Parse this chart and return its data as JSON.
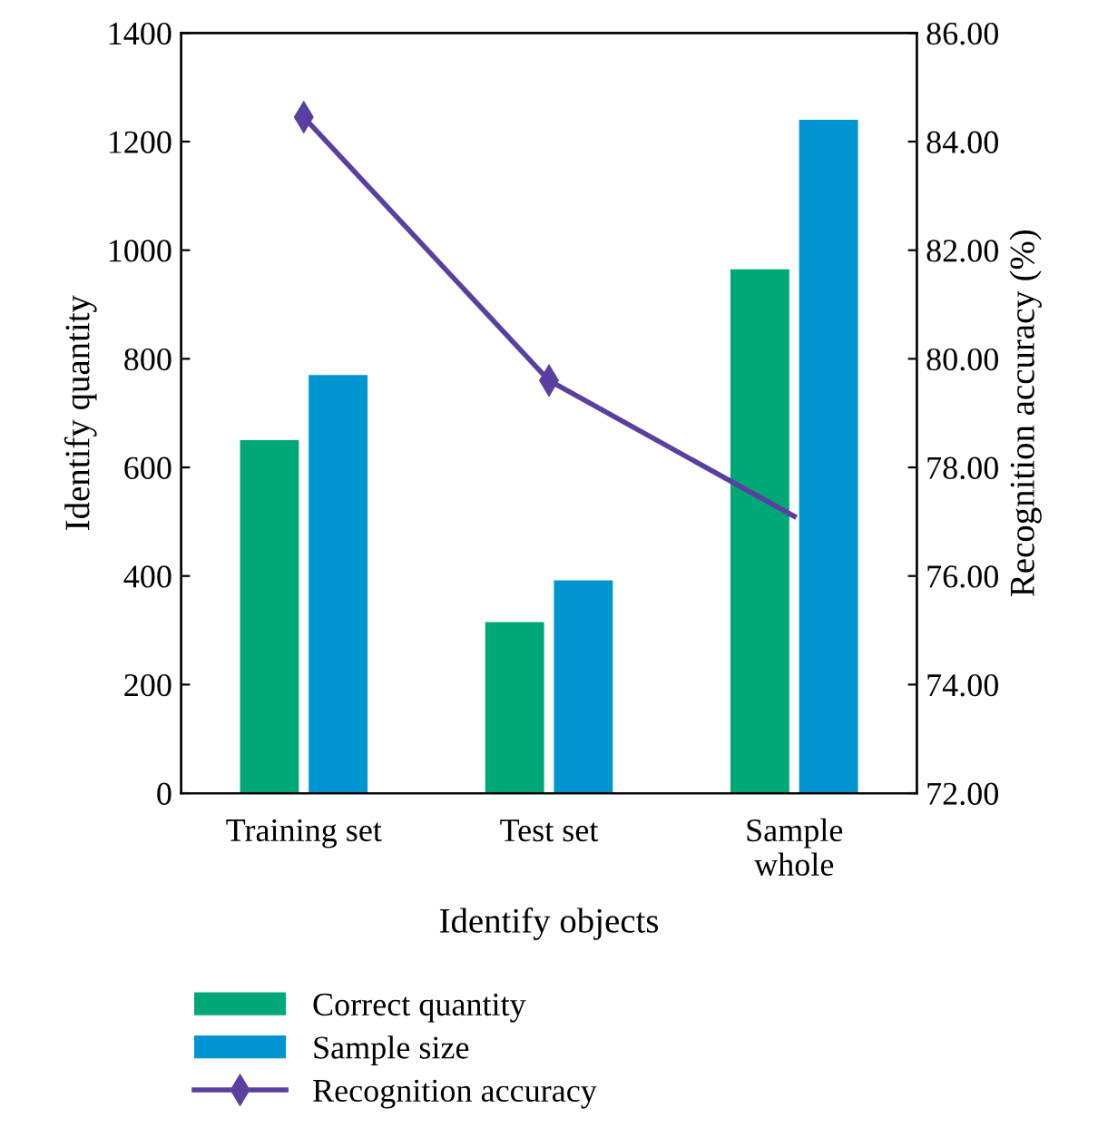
{
  "chart_data": {
    "type": "bar",
    "xlabel": "Identify objects",
    "ylabel": "Identify quantity",
    "y2label": "Recognition accuracy (%)",
    "categories": [
      "Training set",
      "Test set",
      "Sample\nwhole"
    ],
    "series": [
      {
        "name": "Correct quantity",
        "color": "#00a878",
        "values": [
          650,
          315,
          965
        ]
      },
      {
        "name": "Sample size",
        "color": "#0095d0",
        "values": [
          770,
          392,
          1240
        ]
      },
      {
        "name": "Recognition accuracy",
        "color": "#5b3fa0",
        "type": "line",
        "axis": "y2",
        "marker": "diamond",
        "values": [
          84.45,
          79.6,
          77.1
        ]
      }
    ],
    "ylim": [
      0,
      1400
    ],
    "yticks": [
      0,
      200,
      400,
      600,
      800,
      1000,
      1200,
      1400
    ],
    "y2lim": [
      72,
      86
    ],
    "y2ticks": [
      {
        "value": 72,
        "label": "72.00"
      },
      {
        "value": 74,
        "label": "74.00"
      },
      {
        "value": 76,
        "label": "76.00"
      },
      {
        "value": 78,
        "label": "78.00"
      },
      {
        "value": 80,
        "label": "80.00"
      },
      {
        "value": 82,
        "label": "82.00"
      },
      {
        "value": 84,
        "label": "84.00"
      },
      {
        "value": 86,
        "label": "86.00"
      }
    ],
    "legend": "bottom"
  }
}
